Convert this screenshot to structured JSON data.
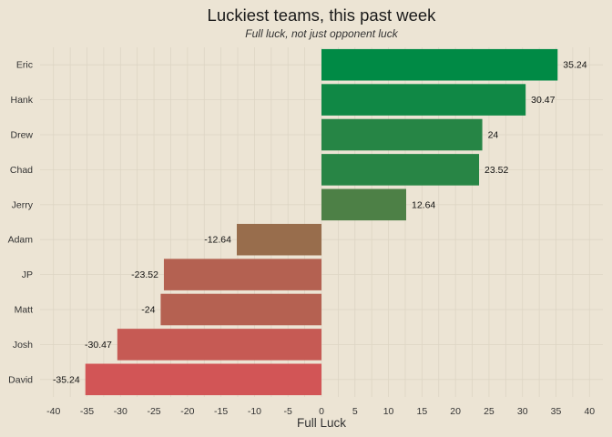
{
  "chart_data": {
    "type": "bar",
    "orientation": "horizontal",
    "title": "Luckiest teams, this past week",
    "subtitle": "Full luck, not just opponent luck",
    "xlabel": "Full Luck",
    "ylabel": "",
    "categories": [
      "Eric",
      "Hank",
      "Drew",
      "Chad",
      "Jerry",
      "Adam",
      "JP",
      "Matt",
      "Josh",
      "David"
    ],
    "values": [
      35.24,
      30.47,
      24,
      23.52,
      12.64,
      -12.64,
      -23.52,
      -24,
      -30.47,
      -35.24
    ],
    "value_labels": [
      "35.24",
      "30.47",
      "24",
      "23.52",
      "12.64",
      "-12.64",
      "-23.52",
      "-24",
      "-30.47",
      "-35.24"
    ],
    "xlim": [
      -42,
      42
    ],
    "xticks": [
      -40,
      -35,
      -30,
      -25,
      -20,
      -15,
      -10,
      -5,
      0,
      5,
      10,
      15,
      20,
      25,
      30,
      35,
      40
    ],
    "xtick_labels": [
      "-40",
      "-35",
      "-30",
      "-25",
      "-20",
      "-15",
      "-10",
      "-5",
      "0",
      "5",
      "10",
      "15",
      "20",
      "25",
      "30",
      "35",
      "40"
    ],
    "grid": true,
    "legend": "none",
    "colors": {
      "background": "#ece4d4",
      "grid": "#ddd5c4",
      "high": "#008a45",
      "mid": "#787a46",
      "low": "#d25556"
    }
  }
}
